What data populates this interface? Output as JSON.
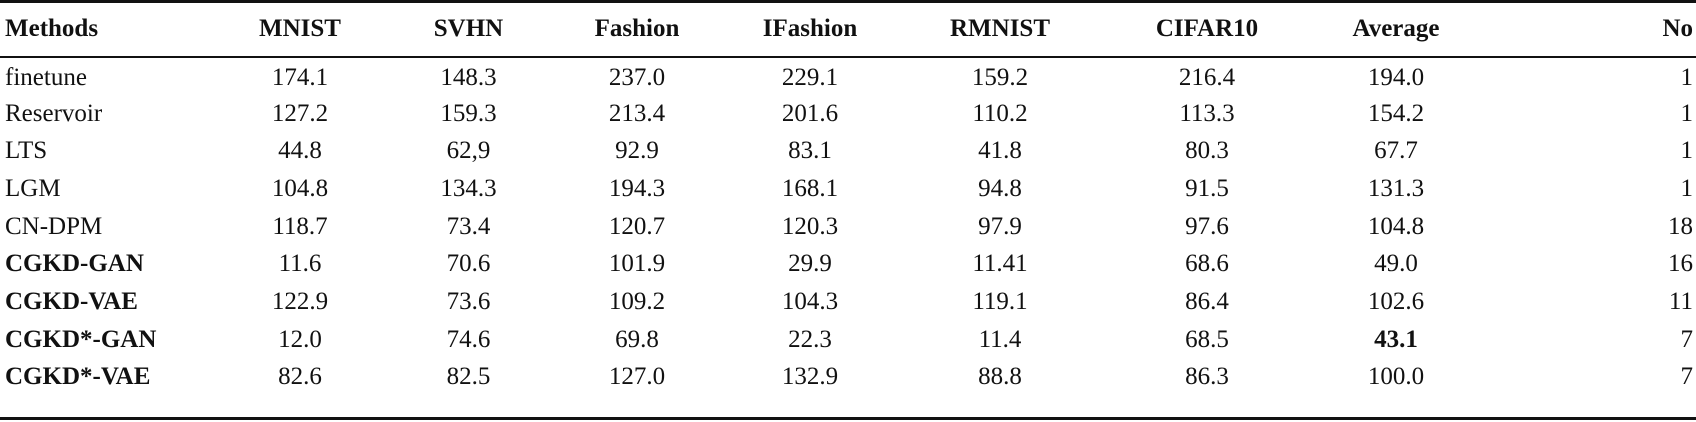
{
  "table": {
    "columns": [
      "Methods",
      "MNIST",
      "SVHN",
      "Fashion",
      "IFashion",
      "RMNIST",
      "CIFAR10",
      "Average",
      "No"
    ],
    "rows": [
      {
        "method": "finetune",
        "bold": false,
        "values": [
          "174.1",
          "148.3",
          "237.0",
          "229.1",
          "159.2",
          "216.4",
          "194.0",
          "1"
        ]
      },
      {
        "method": "Reservoir",
        "bold": false,
        "values": [
          "127.2",
          "159.3",
          "213.4",
          "201.6",
          "110.2",
          "113.3",
          "154.2",
          "1"
        ]
      },
      {
        "method": "LTS",
        "bold": false,
        "values": [
          "44.8",
          "62,9",
          "92.9",
          "83.1",
          "41.8",
          "80.3",
          "67.7",
          "1"
        ]
      },
      {
        "method": "LGM",
        "bold": false,
        "values": [
          "104.8",
          "134.3",
          "194.3",
          "168.1",
          "94.8",
          "91.5",
          "131.3",
          "1"
        ]
      },
      {
        "method": "CN-DPM",
        "bold": false,
        "values": [
          "118.7",
          "73.4",
          "120.7",
          "120.3",
          "97.9",
          "97.6",
          "104.8",
          "18"
        ]
      },
      {
        "method": "CGKD-GAN",
        "bold": true,
        "values": [
          "11.6",
          "70.6",
          "101.9",
          "29.9",
          "11.41",
          "68.6",
          "49.0",
          "16"
        ]
      },
      {
        "method": "CGKD-VAE",
        "bold": true,
        "values": [
          "122.9",
          "73.6",
          "109.2",
          "104.3",
          "119.1",
          "86.4",
          "102.6",
          "11"
        ]
      },
      {
        "method": "CGKD*-GAN",
        "bold": true,
        "values": [
          "12.0",
          "74.6",
          "69.8",
          "22.3",
          "11.4",
          "68.5",
          "43.1",
          "7"
        ],
        "bold_cells": [
          6
        ]
      },
      {
        "method": "CGKD*-VAE",
        "bold": true,
        "values": [
          "82.6",
          "82.5",
          "127.0",
          "132.9",
          "88.8",
          "86.3",
          "100.0",
          "7"
        ]
      }
    ]
  }
}
